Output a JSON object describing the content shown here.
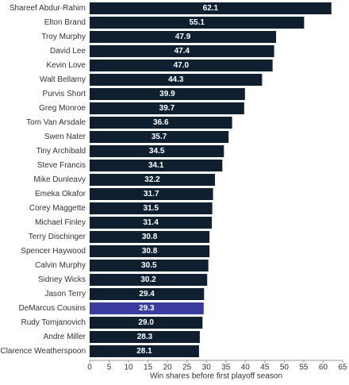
{
  "chart_data": {
    "type": "bar",
    "orientation": "horizontal",
    "categories": [
      "Shareef Abdur-Rahim",
      "Elton Brand",
      "Troy Murphy",
      "David Lee",
      "Kevin Love",
      "Walt Bellamy",
      "Purvis Short",
      "Greg Monroe",
      "Tom Van Arsdale",
      "Swen Nater",
      "Tiny Archibald",
      "Steve Francis",
      "Mike Dunleavy",
      "Emeka Okafor",
      "Corey Maggette",
      "Michael Finley",
      "Terry Dischinger",
      "Spencer Haywood",
      "Calvin Murphy",
      "Sidney Wicks",
      "Jason Terry",
      "DeMarcus Cousins",
      "Rudy Tomjanovich",
      "Andre Miller",
      "Clarence Weatherspoon"
    ],
    "values": [
      62.1,
      55.1,
      47.9,
      47.4,
      47.0,
      44.3,
      39.9,
      39.7,
      36.6,
      35.7,
      34.5,
      34.1,
      32.2,
      31.7,
      31.5,
      31.4,
      30.8,
      30.8,
      30.5,
      30.2,
      29.4,
      29.3,
      29.0,
      28.3,
      28.1
    ],
    "value_labels": [
      "62.1",
      "55.1",
      "47.9",
      "47.4",
      "47.0",
      "44.3",
      "39.9",
      "39.7",
      "36.6",
      "35.7",
      "34.5",
      "34.1",
      "32.2",
      "31.7",
      "31.5",
      "31.4",
      "30.8",
      "30.8",
      "30.5",
      "30.2",
      "29.4",
      "29.3",
      "29.0",
      "28.3",
      "28.1"
    ],
    "highlight": "DeMarcus Cousins",
    "xlabel": "Win shares before first playoff season",
    "ylabel": "",
    "xlim": [
      0,
      65
    ],
    "xticks": [
      0,
      5,
      10,
      15,
      20,
      25,
      30,
      35,
      40,
      45,
      50,
      55,
      60,
      65
    ],
    "grid": false,
    "legend": "none",
    "colors": {
      "bar": "#0f1f30",
      "highlight": "#3b3a9f",
      "bar_label": "#ffffff",
      "text": "#333333",
      "axis": "#999999",
      "background": "#ffffff"
    }
  }
}
